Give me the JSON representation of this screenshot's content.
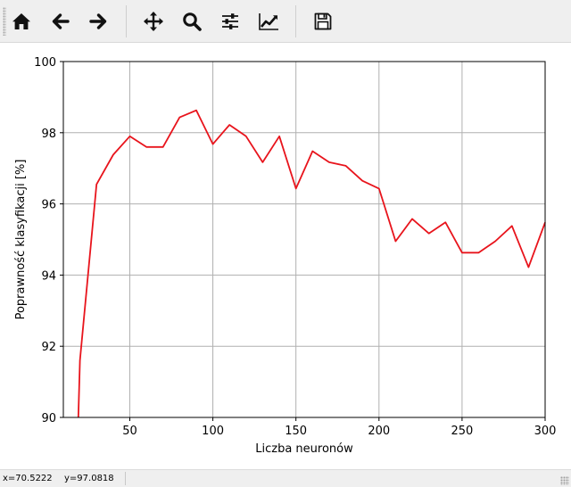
{
  "toolbar": {
    "buttons": [
      {
        "name": "home-button",
        "icon": "home-icon"
      },
      {
        "name": "back-button",
        "icon": "arrow-left-icon"
      },
      {
        "name": "forward-button",
        "icon": "arrow-right-icon"
      },
      {
        "name": "pan-button",
        "icon": "move-icon"
      },
      {
        "name": "zoom-button",
        "icon": "magnifier-icon"
      },
      {
        "name": "configure-subplots-button",
        "icon": "sliders-icon"
      },
      {
        "name": "edit-axis-button",
        "icon": "line-chart-icon"
      },
      {
        "name": "save-button",
        "icon": "floppy-disk-icon"
      }
    ]
  },
  "status": {
    "x_readout": "x=70.5222",
    "y_readout": "y=97.0818"
  },
  "colors": {
    "line": "#e8141c",
    "grid": "#b0b0b0",
    "toolbar_bg": "#efefef"
  },
  "chart_data": {
    "type": "line",
    "title": "",
    "xlabel": "Liczba neuronów",
    "ylabel": "Poprawność klasyfikacji [%]",
    "xlim": [
      10,
      300
    ],
    "ylim": [
      90,
      100
    ],
    "xticks": [
      50,
      100,
      150,
      200,
      250,
      300
    ],
    "yticks": [
      90,
      92,
      94,
      96,
      98,
      100
    ],
    "grid": true,
    "series": [
      {
        "color": "#e8141c",
        "x": [
          19,
          20,
          30,
          40,
          50,
          60,
          70,
          80,
          90,
          100,
          110,
          120,
          130,
          140,
          150,
          160,
          170,
          180,
          190,
          200,
          210,
          220,
          230,
          240,
          250,
          260,
          270,
          280,
          290,
          300
        ],
        "y": [
          90.0,
          91.6,
          96.55,
          97.38,
          97.9,
          97.6,
          97.6,
          98.43,
          98.63,
          97.68,
          98.22,
          97.9,
          97.17,
          97.9,
          96.43,
          97.48,
          97.17,
          97.07,
          96.65,
          96.43,
          94.95,
          95.58,
          95.17,
          95.48,
          94.63,
          94.63,
          94.95,
          95.38,
          94.22,
          95.48
        ]
      }
    ]
  }
}
